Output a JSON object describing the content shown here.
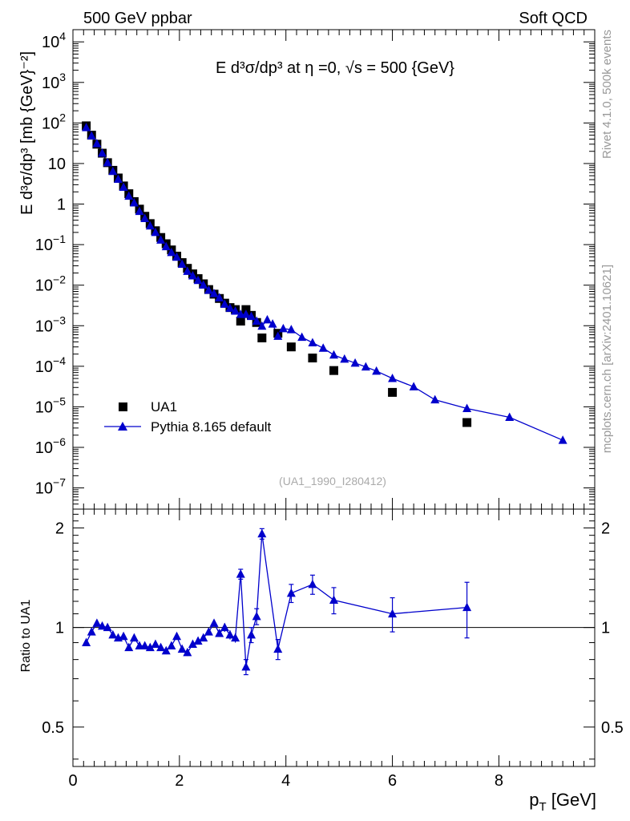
{
  "header": {
    "left": "500 GeV ppbar",
    "right": "Soft QCD"
  },
  "side": {
    "rivet": "Rivet 4.1.0,  500k events",
    "mcplots": "mcplots.cern.ch [arXiv:2401.10621]"
  },
  "chart_data": [
    {
      "type": "scatter",
      "panel": "main",
      "title": "E   d³σ/dp³ at η =0, √s = 500 {GeV}",
      "ylabel": "E d³σ/dp³ [mb {GeV}⁻²]",
      "watermark": "(UA1_1990_I280412)",
      "yscale": "log",
      "xlim": [
        0,
        9.8
      ],
      "ylim": [
        3e-08,
        20000.0
      ],
      "yticks": [
        {
          "v": 10000.0,
          "base": "10",
          "exp": "4"
        },
        {
          "v": 1000.0,
          "base": "10",
          "exp": "3"
        },
        {
          "v": 100.0,
          "base": "10",
          "exp": "2"
        },
        {
          "v": 10,
          "base": "10",
          "exp": ""
        },
        {
          "v": 1,
          "base": "1",
          "exp": ""
        },
        {
          "v": 0.1,
          "base": "10",
          "exp": "−1"
        },
        {
          "v": 0.01,
          "base": "10",
          "exp": "−2"
        },
        {
          "v": 0.001,
          "base": "10",
          "exp": "−3"
        },
        {
          "v": 0.0001,
          "base": "10",
          "exp": "−4"
        },
        {
          "v": 1e-05,
          "base": "10",
          "exp": "−5"
        },
        {
          "v": 1e-06,
          "base": "10",
          "exp": "−6"
        },
        {
          "v": 1e-07,
          "base": "10",
          "exp": "−7"
        }
      ],
      "legend_position": "bottom-left",
      "series": [
        {
          "name": "UA1",
          "style": "squares",
          "color": "#000000",
          "x": [
            0.25,
            0.35,
            0.45,
            0.55,
            0.65,
            0.75,
            0.85,
            0.95,
            1.05,
            1.15,
            1.25,
            1.35,
            1.45,
            1.55,
            1.65,
            1.75,
            1.85,
            1.95,
            2.05,
            2.15,
            2.25,
            2.35,
            2.45,
            2.55,
            2.65,
            2.75,
            2.85,
            2.95,
            3.05,
            3.15,
            3.25,
            3.35,
            3.45,
            3.55,
            3.85,
            4.1,
            4.5,
            4.9,
            6.0,
            7.4
          ],
          "y": [
            85,
            50,
            30,
            18,
            10.5,
            6.8,
            4.4,
            2.8,
            1.8,
            1.15,
            0.75,
            0.5,
            0.33,
            0.22,
            0.15,
            0.105,
            0.074,
            0.052,
            0.036,
            0.026,
            0.019,
            0.0145,
            0.0108,
            0.0078,
            0.006,
            0.0047,
            0.0036,
            0.0028,
            0.0025,
            0.0013,
            0.0025,
            0.0018,
            0.0012,
            0.0005,
            0.00065,
            0.0003,
            0.00016,
            7.85e-05,
            2.27e-05,
            4.1e-06
          ]
        },
        {
          "name": "Pythia 8.165 default",
          "style": "triangles-line",
          "color": "#0000cc",
          "x": [
            0.25,
            0.35,
            0.45,
            0.55,
            0.65,
            0.75,
            0.85,
            0.95,
            1.05,
            1.15,
            1.25,
            1.35,
            1.45,
            1.55,
            1.65,
            1.75,
            1.85,
            1.95,
            2.05,
            2.15,
            2.25,
            2.35,
            2.45,
            2.55,
            2.65,
            2.75,
            2.85,
            2.95,
            3.05,
            3.15,
            3.25,
            3.35,
            3.45,
            3.55,
            3.65,
            3.75,
            3.85,
            3.95,
            4.1,
            4.3,
            4.5,
            4.7,
            4.9,
            5.1,
            5.3,
            5.5,
            5.7,
            6.0,
            6.4,
            6.8,
            7.4,
            8.2,
            9.2
          ],
          "y": [
            77,
            48,
            31,
            18,
            10.5,
            6.4,
            4.1,
            2.6,
            1.57,
            1.07,
            0.66,
            0.44,
            0.29,
            0.2,
            0.13,
            0.089,
            0.064,
            0.049,
            0.033,
            0.022,
            0.017,
            0.0131,
            0.0101,
            0.0075,
            0.0062,
            0.0049,
            0.0034,
            0.0027,
            0.0023,
            0.0019,
            0.0019,
            0.0017,
            0.0013,
            0.00098,
            0.0014,
            0.0011,
            0.00055,
            0.00085,
            0.0008,
            0.00052,
            0.00038,
            0.00028,
            0.00019,
            0.00015,
            0.00012,
            9.63e-05,
            7.61e-05,
            5.01e-05,
            3.12e-05,
            1.49e-05,
            9.1e-06,
            5.5e-06,
            1.5e-06
          ]
        }
      ]
    },
    {
      "type": "line",
      "panel": "ratio",
      "ylabel": "Ratio to UA1",
      "xlabel": "p_T [GeV]",
      "xlim": [
        0,
        9.8
      ],
      "ylim": [
        0.38,
        2.28
      ],
      "yscale": "log",
      "yticks": [
        0.5,
        1,
        2
      ],
      "ytick_labels": [
        "0.5",
        "1",
        "2"
      ],
      "xticks": [
        0,
        2,
        4,
        6,
        8
      ],
      "xtick_labels": [
        "0",
        "2",
        "4",
        "6",
        "8"
      ],
      "reference": 1,
      "series": [
        {
          "name": "Pythia 8.165 default / UA1",
          "color": "#0000cc",
          "x": [
            0.25,
            0.35,
            0.45,
            0.55,
            0.65,
            0.75,
            0.85,
            0.95,
            1.05,
            1.15,
            1.25,
            1.35,
            1.45,
            1.55,
            1.65,
            1.75,
            1.85,
            1.95,
            2.05,
            2.15,
            2.25,
            2.35,
            2.45,
            2.55,
            2.65,
            2.75,
            2.85,
            2.95,
            3.05,
            3.15,
            3.25,
            3.35,
            3.45,
            3.55,
            3.85,
            4.1,
            4.5,
            4.9,
            6.0,
            7.4
          ],
          "y": [
            0.9,
            0.97,
            1.03,
            1.01,
            1.0,
            0.95,
            0.93,
            0.94,
            0.87,
            0.93,
            0.88,
            0.88,
            0.87,
            0.89,
            0.87,
            0.85,
            0.88,
            0.94,
            0.86,
            0.84,
            0.89,
            0.91,
            0.93,
            0.97,
            1.03,
            0.96,
            1.0,
            0.95,
            0.93,
            1.45,
            0.76,
            0.95,
            1.08,
            1.92,
            0.86,
            1.27,
            1.35,
            1.21,
            1.1,
            1.15
          ],
          "err": [
            0.02,
            0.02,
            0.02,
            0.02,
            0.02,
            0.02,
            0.02,
            0.02,
            0.02,
            0.02,
            0.02,
            0.02,
            0.02,
            0.02,
            0.02,
            0.02,
            0.02,
            0.02,
            0.02,
            0.02,
            0.02,
            0.02,
            0.02,
            0.02,
            0.02,
            0.02,
            0.03,
            0.03,
            0.03,
            0.05,
            0.04,
            0.05,
            0.06,
            0.07,
            0.06,
            0.08,
            0.09,
            0.11,
            0.13,
            0.22
          ]
        }
      ]
    }
  ]
}
